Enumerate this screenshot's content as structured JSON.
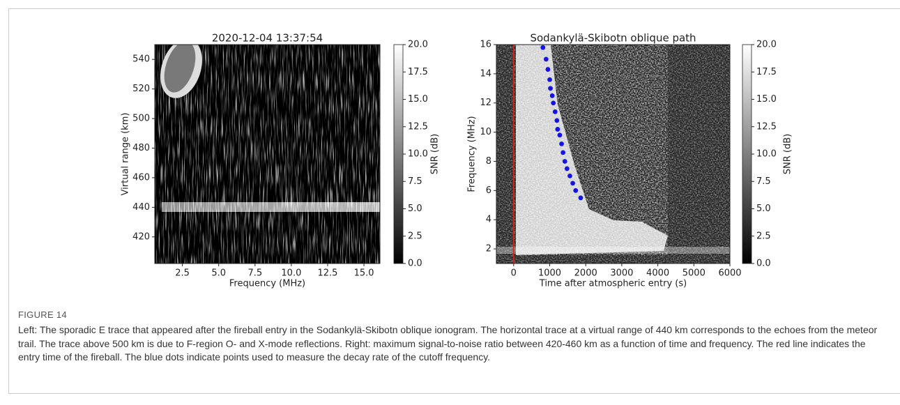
{
  "chart_data": [
    {
      "type": "heatmap",
      "title": "2020-12-04 13:37:54",
      "x_label": "Frequency (MHz)",
      "y_label": "Virtual range (km)",
      "xlim": [
        0.6,
        16.1
      ],
      "ylim": [
        402,
        550
      ],
      "xticks": [
        2.5,
        {
          "value": 5,
          "label": "5.0"
        },
        7.5,
        {
          "value": 10,
          "label": "10.0"
        },
        12.5,
        {
          "value": 15,
          "label": "15.0"
        }
      ],
      "yticks": [
        420,
        440,
        460,
        480,
        500,
        520,
        540
      ],
      "colorbar": {
        "label": "SNR (dB)",
        "lim": [
          0,
          20
        ],
        "ticks": [
          {
            "value": 0,
            "label": "0.0"
          },
          2.5,
          {
            "value": 5,
            "label": "5.0"
          },
          7.5,
          {
            "value": 10,
            "label": "10.0"
          },
          12.5,
          {
            "value": 15,
            "label": "15.0"
          },
          17.5,
          {
            "value": 20,
            "label": "20.0"
          }
        ]
      }
    },
    {
      "type": "heatmap",
      "title": "Sodankylä-Skibotn oblique path",
      "x_label": "Time after atmospheric entry (s)",
      "y_label": "Frequency (MHz)",
      "xlim": [
        -480,
        6000
      ],
      "ylim": [
        1,
        16
      ],
      "xticks": [
        0,
        1000,
        2000,
        3000,
        4000,
        5000,
        6000
      ],
      "yticks": [
        2,
        4,
        6,
        8,
        10,
        12,
        14,
        16
      ],
      "vline": {
        "x": 0,
        "color": "#e02020"
      },
      "series": [
        {
          "type": "scatter",
          "color": "#1414e6",
          "x": [
            812,
            900,
            950,
            1000,
            1020,
            1070,
            1100,
            1150,
            1200,
            1220,
            1280,
            1330,
            1370,
            1420,
            1480,
            1560,
            1640,
            1720,
            1860
          ],
          "values": [
            15.8,
            15.0,
            14.3,
            13.6,
            13.0,
            12.5,
            12.0,
            11.4,
            10.8,
            10.2,
            9.8,
            9.2,
            8.6,
            8.0,
            7.5,
            7.0,
            6.5,
            6.0,
            5.5
          ]
        }
      ],
      "colorbar": {
        "label": "SNR (dB)",
        "lim": [
          0,
          20
        ],
        "ticks": [
          {
            "value": 0,
            "label": "0.0"
          },
          2.5,
          {
            "value": 5,
            "label": "5.0"
          },
          7.5,
          {
            "value": 10,
            "label": "10.0"
          },
          12.5,
          {
            "value": 15,
            "label": "15.0"
          },
          17.5,
          {
            "value": 20,
            "label": "20.0"
          }
        ]
      }
    }
  ],
  "figure_caption": {
    "label": "FIGURE 14",
    "text": "Left: The sporadic E trace that appeared after the fireball entry in the Sodankylä-Skibotn oblique ionogram. The horizontal trace at a virtual range of 440 km corresponds to the echoes from the meteor trail. The trace above 500 km is due to F-region O- and X-mode reflections. Right: maximum signal-to-noise ratio between 420-460 km as a function of time and frequency. The red line indicates the entry time of the fireball. The blue dots indicate points used to measure the decay rate of the cutoff frequency."
  }
}
